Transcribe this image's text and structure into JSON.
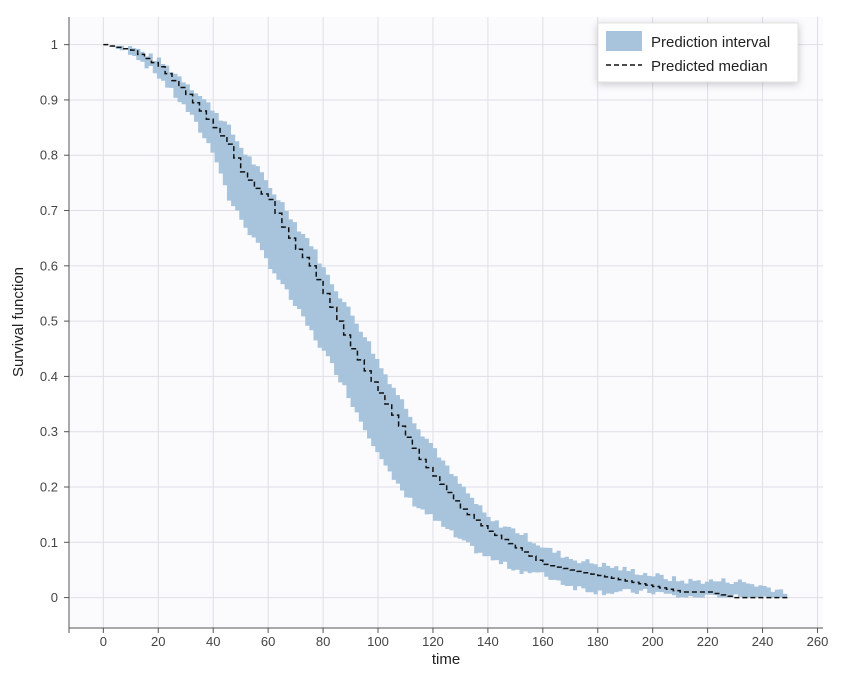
{
  "chart_data": {
    "type": "area",
    "xlabel": "time",
    "ylabel": "Survival function",
    "xlim": [
      -12.5,
      262
    ],
    "ylim": [
      -0.055,
      1.05
    ],
    "x_ticks": [
      0,
      20,
      40,
      60,
      80,
      100,
      120,
      140,
      160,
      180,
      200,
      220,
      240,
      260
    ],
    "y_ticks": [
      0,
      0.1,
      0.2,
      0.3,
      0.4,
      0.5,
      0.6,
      0.7,
      0.8,
      0.9,
      1
    ],
    "y_tick_labels": [
      "0",
      "0.1",
      "0.2",
      "0.3",
      "0.4",
      "0.5",
      "0.6",
      "0.7",
      "0.8",
      "0.9",
      "1"
    ],
    "grid": true,
    "legend_position": "top-right",
    "colors": {
      "band": "#a7c4dc",
      "median": "#111111",
      "grid": "#dedee6",
      "plot_bg": "#fbfbfe"
    },
    "series": [
      {
        "name": "Prediction interval",
        "kind": "band",
        "x": [
          0,
          10,
          20,
          30,
          40,
          45,
          50,
          55,
          60,
          65,
          70,
          75,
          80,
          85,
          90,
          95,
          100,
          105,
          110,
          115,
          120,
          125,
          130,
          140,
          150,
          160,
          170,
          180,
          190,
          200,
          210,
          220,
          230,
          240,
          249
        ],
        "upper": [
          1.0,
          0.995,
          0.97,
          0.93,
          0.88,
          0.85,
          0.81,
          0.78,
          0.74,
          0.71,
          0.67,
          0.64,
          0.59,
          0.55,
          0.51,
          0.47,
          0.42,
          0.38,
          0.34,
          0.3,
          0.27,
          0.23,
          0.2,
          0.14,
          0.12,
          0.09,
          0.07,
          0.06,
          0.05,
          0.04,
          0.03,
          0.03,
          0.03,
          0.02,
          0.01
        ],
        "lower": [
          1.0,
          0.985,
          0.94,
          0.88,
          0.8,
          0.72,
          0.68,
          0.64,
          0.6,
          0.56,
          0.52,
          0.48,
          0.44,
          0.4,
          0.35,
          0.3,
          0.26,
          0.21,
          0.18,
          0.16,
          0.14,
          0.12,
          0.1,
          0.07,
          0.05,
          0.04,
          0.02,
          0.01,
          0.01,
          0.01,
          0.0,
          0.0,
          0.0,
          0.0,
          0.0
        ]
      },
      {
        "name": "Predicted median",
        "kind": "step",
        "x": [
          0,
          10,
          20,
          30,
          40,
          45,
          50,
          55,
          60,
          65,
          70,
          75,
          80,
          85,
          90,
          95,
          100,
          105,
          110,
          115,
          120,
          125,
          130,
          140,
          150,
          160,
          170,
          180,
          190,
          200,
          210,
          220,
          230,
          240,
          249
        ],
        "values": [
          1.0,
          0.99,
          0.96,
          0.91,
          0.85,
          0.82,
          0.77,
          0.74,
          0.72,
          0.67,
          0.63,
          0.6,
          0.55,
          0.5,
          0.45,
          0.41,
          0.37,
          0.33,
          0.29,
          0.25,
          0.22,
          0.19,
          0.16,
          0.12,
          0.09,
          0.06,
          0.05,
          0.04,
          0.03,
          0.02,
          0.01,
          0.01,
          0.0,
          0.0,
          0.0
        ]
      }
    ]
  }
}
